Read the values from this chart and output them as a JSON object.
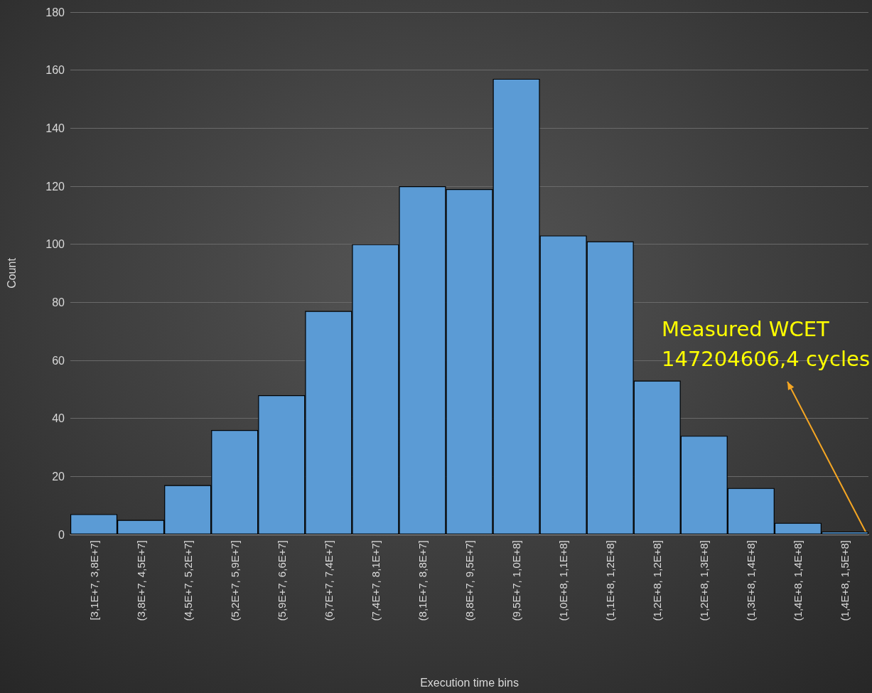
{
  "chart_data": {
    "type": "bar",
    "xlabel": "Execution time bins",
    "ylabel": "Count",
    "categories": [
      "[3,1E+7, 3,8E+7]",
      "(3,8E+7, 4,5E+7]",
      "(4,5E+7, 5,2E+7]",
      "(5,2E+7, 5,9E+7]",
      "(5,9E+7, 6,6E+7]",
      "(6,7E+7, 7,4E+7]",
      "(7,4E+7, 8,1E+7]",
      "(8,1E+7, 8,8E+7]",
      "(8,8E+7, 9,5E+7]",
      "(9,5E+7, 1,0E+8]",
      "(1,0E+8, 1,1E+8]",
      "(1,1E+8, 1,2E+8]",
      "(1,2E+8, 1,2E+8]",
      "(1,2E+8, 1,3E+8]",
      "(1,3E+8, 1,4E+8]",
      "(1,4E+8, 1,4E+8]",
      "(1,4E+8, 1,5E+8]"
    ],
    "values": [
      7,
      5,
      17,
      36,
      48,
      77,
      100,
      120,
      119,
      157,
      103,
      101,
      53,
      34,
      16,
      4,
      1
    ],
    "color": "#5b9bd5",
    "ylim": [
      0,
      180
    ],
    "yticks": [
      0,
      20,
      40,
      60,
      80,
      100,
      120,
      140,
      160,
      180
    ],
    "grid": "y",
    "annotations": [
      "Measured WCET\n147204606,4 cycles"
    ]
  }
}
